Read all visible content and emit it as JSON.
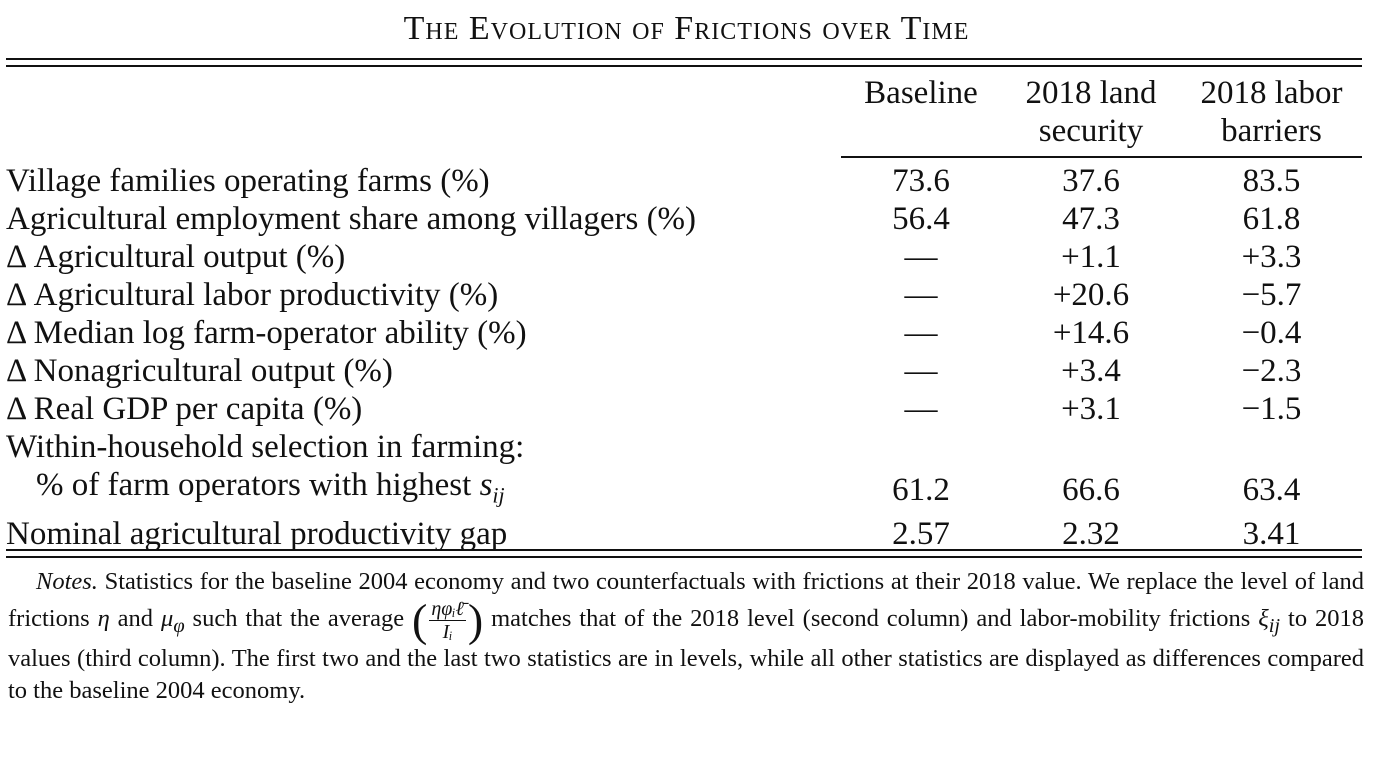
{
  "title": "The Evolution of Frictions over Time",
  "columns": {
    "baseline": "Baseline",
    "land_line1": "2018 land",
    "land_line2": "security",
    "labor_line1": "2018 labor",
    "labor_line2": "barriers"
  },
  "rows": [
    {
      "label": "Village families operating farms (%)",
      "baseline": "73.6",
      "land": "37.6",
      "labor": "83.5"
    },
    {
      "label": "Agricultural employment share among villagers (%)",
      "baseline": "56.4",
      "land": "47.3",
      "labor": "61.8"
    },
    {
      "label": "Δ Agricultural output (%)",
      "baseline": "—",
      "land": "+1.1",
      "labor": "+3.3"
    },
    {
      "label": "Δ Agricultural labor productivity (%)",
      "baseline": "—",
      "land": "+20.6",
      "labor": "−5.7"
    },
    {
      "label": "Δ Median log farm-operator ability (%)",
      "baseline": "—",
      "land": "+14.6",
      "labor": "−0.4"
    },
    {
      "label": "Δ Nonagricultural output (%)",
      "baseline": "—",
      "land": "+3.4",
      "labor": "−2.3"
    },
    {
      "label": "Δ Real GDP per capita (%)",
      "baseline": "—",
      "land": "+3.1",
      "labor": "−1.5"
    }
  ],
  "selection": {
    "heading": "Within-household selection in farming:",
    "label": "% of farm operators with highest ",
    "symbol": "s",
    "subscript": "ij",
    "baseline": "61.2",
    "land": "66.6",
    "labor": "63.4"
  },
  "gap_row": {
    "label": "Nominal agricultural productivity gap",
    "baseline": "2.57",
    "land": "2.32",
    "labor": "3.41"
  },
  "notes": {
    "label": "Notes.",
    "s1": " Statistics for the baseline 2004 economy and two counterfactuals with frictions at their 2018 value. We replace the level of land frictions ",
    "eta": "η",
    "s2": " and ",
    "mu": "μ",
    "mu_sub": "φ",
    "s3": " such that the average ",
    "frac_num": "ηφᵢℓ̄",
    "frac_den": "Iᵢ",
    "s4": " matches that of the 2018 level (second column) and labor-mobility frictions ",
    "xi": "ξ",
    "xi_sub": "ij",
    "s5": " to 2018 values (third column). The first two and the last two statistics are in levels, while all other statistics are displayed as differences compared to the baseline 2004 economy."
  }
}
